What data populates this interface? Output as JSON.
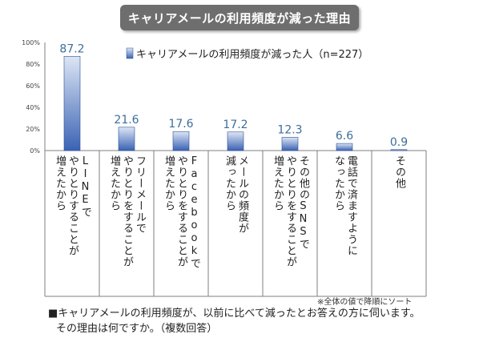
{
  "title": "キャリアメールの利用頻度が減った理由",
  "chart_data": {
    "type": "bar",
    "legend_placement": "top",
    "categories": [
      [
        "LINEで",
        "やりとりすることが",
        "増えたから"
      ],
      [
        "フリーメールで",
        "やりとりをすることが",
        "増えたから"
      ],
      [
        "Facebookで",
        "やりとりをすることが",
        "増えたから"
      ],
      [
        "メールの頻度が",
        "減ったから"
      ],
      [
        "その他のSNSで",
        "やりとりをすることが",
        "増えたから"
      ],
      [
        "電話で済ますように",
        "なったから"
      ],
      [
        "その他"
      ]
    ],
    "series": [
      {
        "name": "キャリアメールの利用頻度が減った人（n=227）",
        "values": [
          87.2,
          21.6,
          17.6,
          17.2,
          12.3,
          6.6,
          0.9
        ]
      }
    ],
    "data_labels": [
      "87.2",
      "21.6",
      "17.6",
      "17.2",
      "12.3",
      "6.6",
      "0.9"
    ],
    "y_ticks": [
      "0%",
      "20%",
      "40%",
      "60%",
      "80%",
      "100%"
    ],
    "ylim": [
      0,
      100
    ],
    "grid": false,
    "colors": {
      "bar_light": "#dde6f4",
      "bar_dark": "#3a62b4",
      "bar_edge": "#2d4f99",
      "label": "#3d6e9a",
      "axis": "#7f7f7f"
    }
  },
  "sort_note": "※全体の値で降順にソート",
  "question": [
    "■キャリアメールの利用頻度が、以前に比べて減ったとお答えの方に伺います。",
    "その理由は何ですか。（複数回答）"
  ]
}
